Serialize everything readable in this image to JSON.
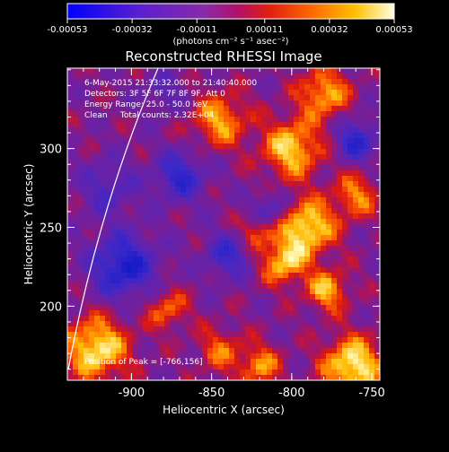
{
  "chart_data": {
    "type": "heatmap",
    "title": "Reconstructed RHESSI Image",
    "xlabel": "Heliocentric X (arcsec)",
    "ylabel": "Heliocentric Y (arcsec)",
    "xlim": [
      -940,
      -745
    ],
    "ylim": [
      153,
      351
    ],
    "xticks": [
      -900,
      -850,
      -800,
      -750
    ],
    "xtick_labels": [
      "-900",
      "-850",
      "-800",
      "-750"
    ],
    "yticks": [
      200,
      250,
      300
    ],
    "ytick_labels": [
      "200",
      "250",
      "300"
    ],
    "colorbar": {
      "range": [
        -0.00053,
        0.00053
      ],
      "ticks": [
        -0.00053,
        -0.00032,
        -0.00011,
        0.00011,
        0.00032,
        0.00053
      ],
      "tick_labels": [
        "-0.00053",
        "-0.00032",
        "-0.00011",
        "0.00011",
        "0.00032",
        "0.00053"
      ],
      "unit_label": "(photons cm⁻² s⁻¹ asec⁻²)"
    },
    "annotations": [
      "6-May-2015 21:33:32.000 to 21:40:40.000",
      "Detectors: 3F 5F 6F 7F 8F 9F, Att 0",
      "Energy Range: 25.0 - 50.0 keV",
      "Clean     Total counts: 2.32E+04"
    ],
    "peak_label": "Position of Peak = [-766,156]",
    "peak_position": [
      -766,
      156
    ],
    "limb_arc": "solar limb drawn as white arc near left edge",
    "blobs": [
      {
        "x": -922,
        "y": 173,
        "s": 14,
        "a": 0.95
      },
      {
        "x": -878,
        "y": 198,
        "s": 9,
        "a": 0.55
      },
      {
        "x": -845,
        "y": 172,
        "s": 10,
        "a": 0.5
      },
      {
        "x": -820,
        "y": 162,
        "s": 9,
        "a": 0.65
      },
      {
        "x": -762,
        "y": 162,
        "s": 13,
        "a": 1.0
      },
      {
        "x": -790,
        "y": 250,
        "s": 12,
        "a": 0.95
      },
      {
        "x": -805,
        "y": 228,
        "s": 10,
        "a": 0.8
      },
      {
        "x": -822,
        "y": 248,
        "s": 8,
        "a": 0.55
      },
      {
        "x": -778,
        "y": 210,
        "s": 9,
        "a": 0.75
      },
      {
        "x": -800,
        "y": 300,
        "s": 13,
        "a": 0.85
      },
      {
        "x": -845,
        "y": 318,
        "s": 12,
        "a": 0.7
      },
      {
        "x": -780,
        "y": 335,
        "s": 11,
        "a": 0.75
      },
      {
        "x": -760,
        "y": 270,
        "s": 10,
        "a": 0.6
      },
      {
        "x": -870,
        "y": 282,
        "s": 11,
        "a": -0.7
      },
      {
        "x": -905,
        "y": 225,
        "s": 14,
        "a": -0.9
      },
      {
        "x": -840,
        "y": 232,
        "s": 10,
        "a": -0.6
      },
      {
        "x": -815,
        "y": 260,
        "s": 8,
        "a": -0.55
      },
      {
        "x": -760,
        "y": 305,
        "s": 9,
        "a": -0.75
      },
      {
        "x": -915,
        "y": 275,
        "s": 12,
        "a": -0.45
      },
      {
        "x": -880,
        "y": 335,
        "s": 9,
        "a": -0.35
      }
    ]
  }
}
